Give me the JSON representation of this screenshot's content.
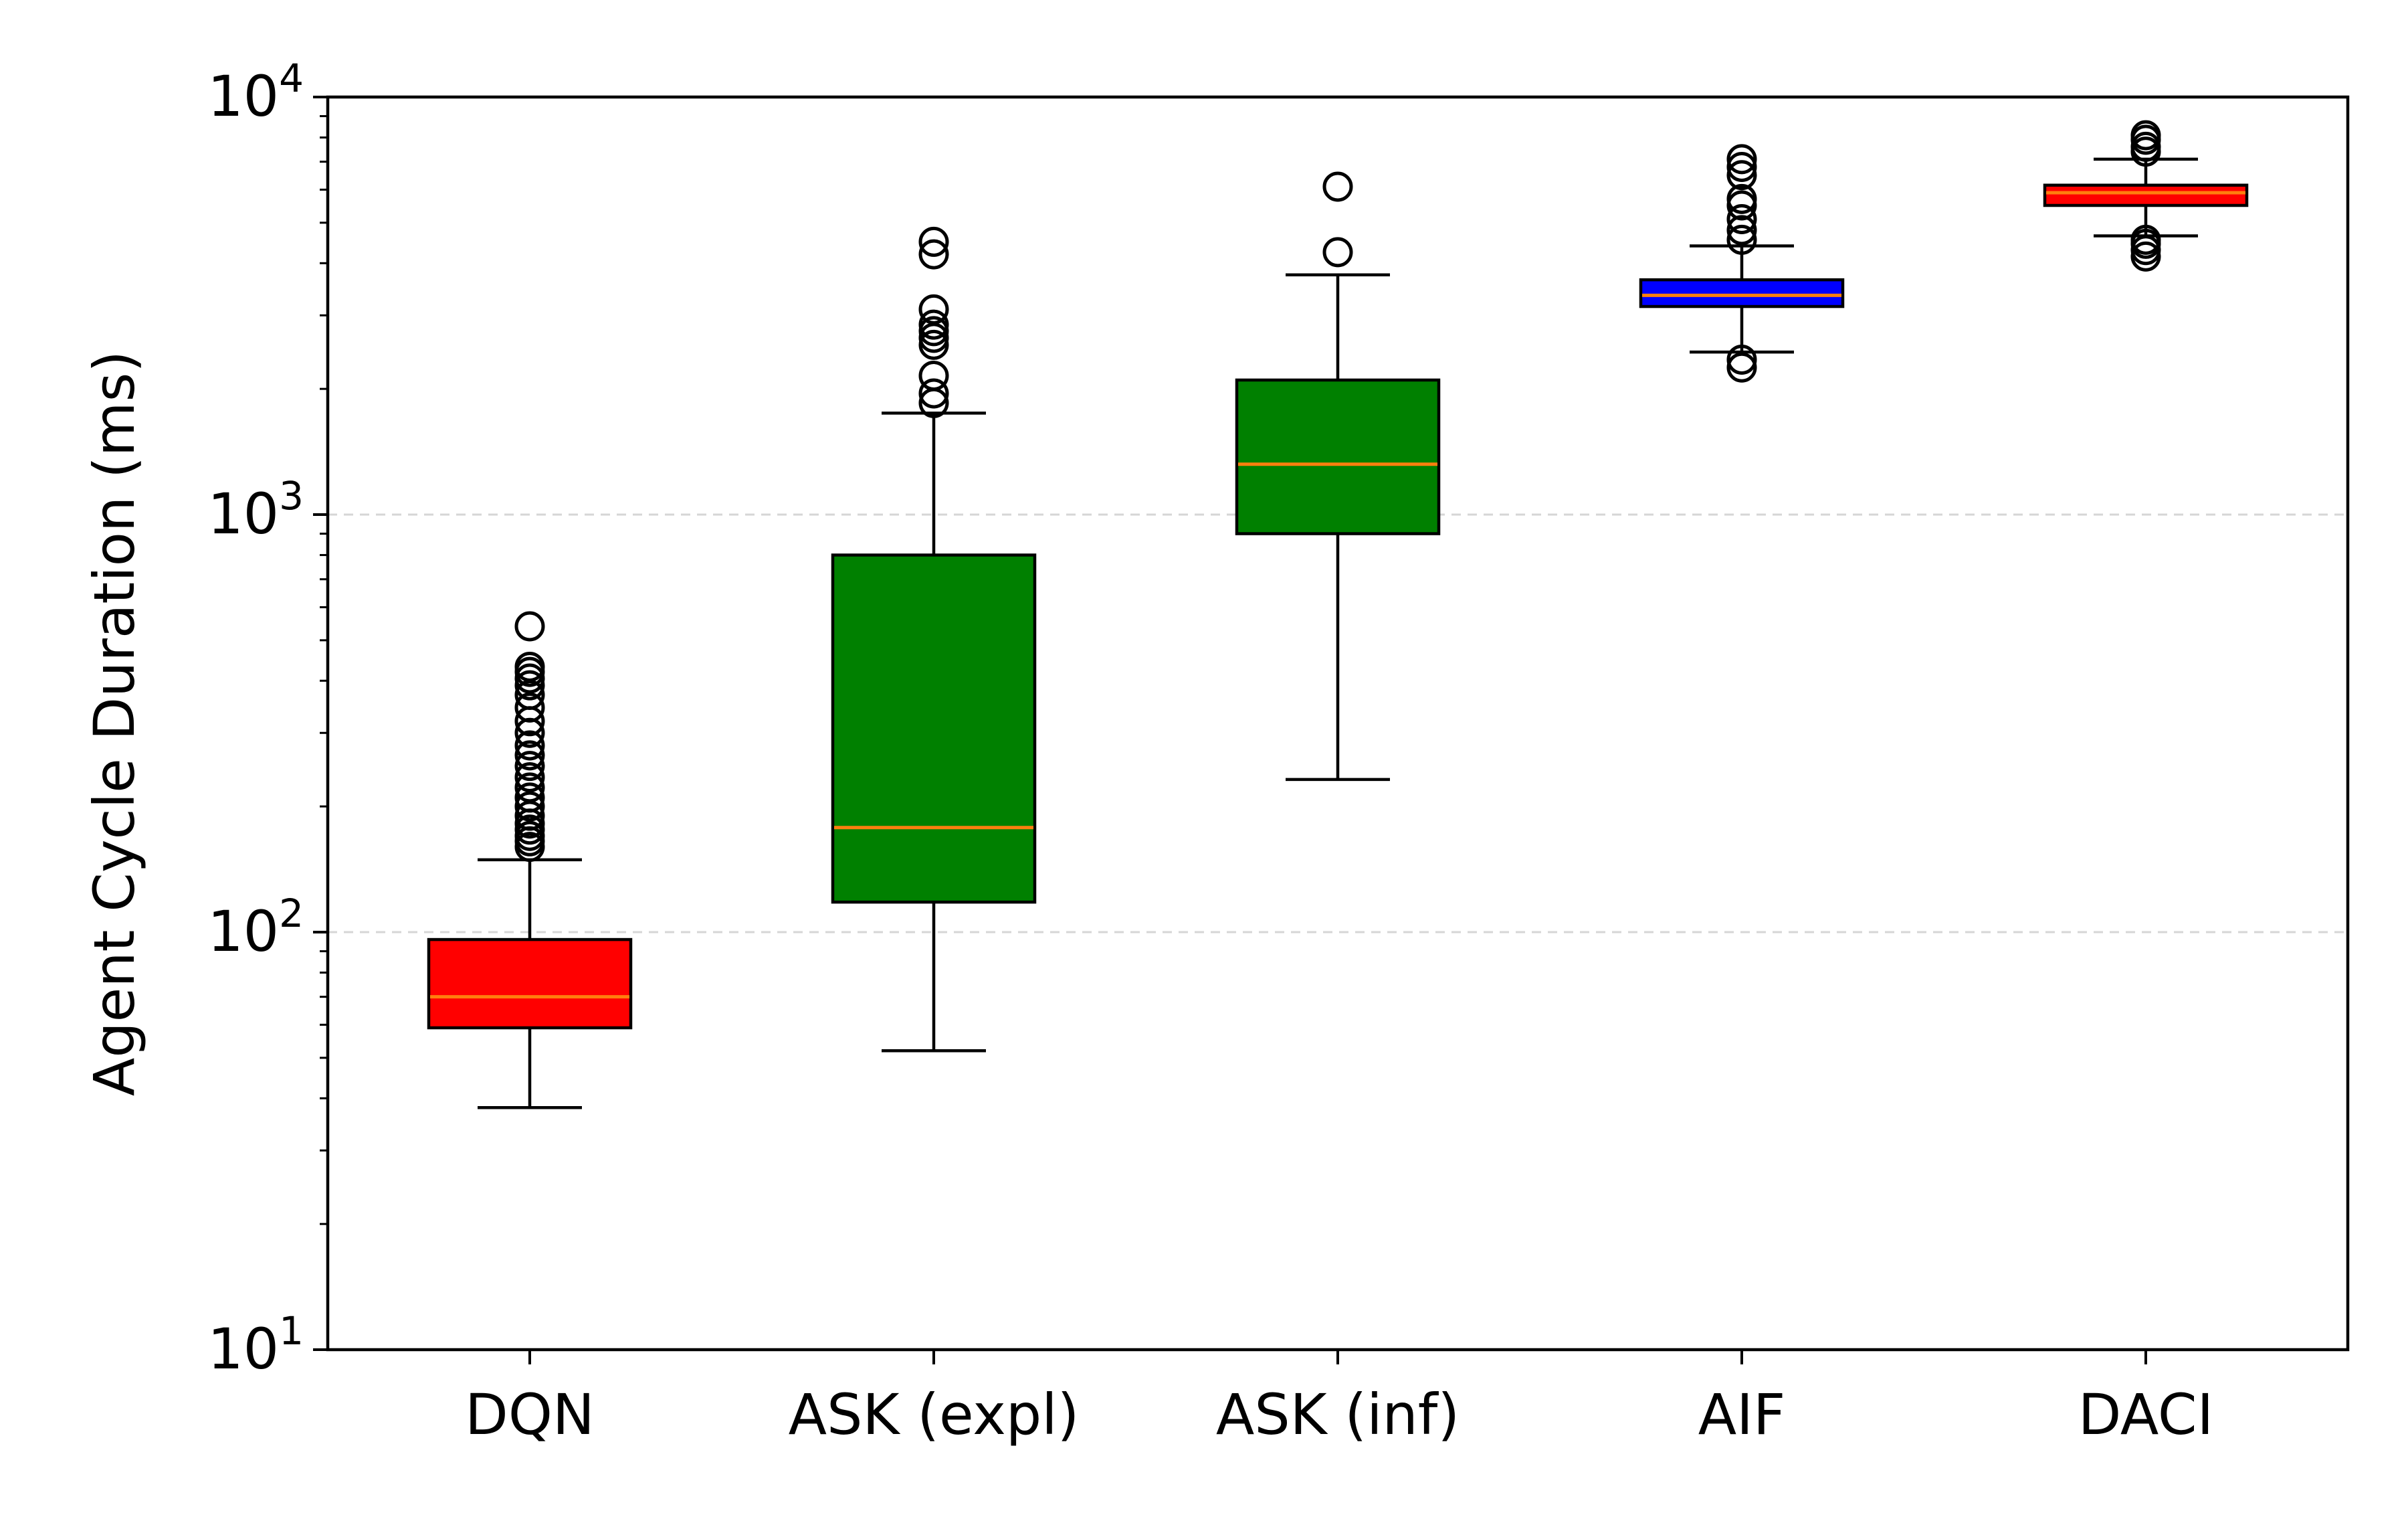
{
  "chart_data": {
    "type": "box",
    "ylabel": "Agent Cycle Duration (ms)",
    "yscale": "log",
    "ylim": [
      10,
      10000
    ],
    "grid": {
      "y_major": true,
      "x": false,
      "style": "dashed",
      "color": "#d6d6d6"
    },
    "y_tick_labels": [
      {
        "value": 10,
        "base": "10",
        "exp": "1"
      },
      {
        "value": 100,
        "base": "10",
        "exp": "2"
      },
      {
        "value": 1000,
        "base": "10",
        "exp": "3"
      },
      {
        "value": 10000,
        "base": "10",
        "exp": "4"
      }
    ],
    "categories": [
      "DQN",
      "ASK (expl)",
      "ASK (inf)",
      "AIF",
      "DACI"
    ],
    "boxes": [
      {
        "name": "DQN",
        "color": "#ff0000",
        "whisker_low": 38,
        "q1": 59,
        "median": 70,
        "q3": 96,
        "whisker_high": 149,
        "outliers": [
          160,
          165,
          170,
          176,
          182,
          190,
          200,
          210,
          222,
          235,
          250,
          265,
          280,
          300,
          320,
          345,
          370,
          390,
          405,
          420,
          432,
          540
        ]
      },
      {
        "name": "ASK (expl)",
        "color": "#008000",
        "whisker_low": 52,
        "q1": 118,
        "median": 178,
        "q3": 800,
        "whisker_high": 1750,
        "outliers": [
          1850,
          1950,
          2150,
          2550,
          2650,
          2750,
          2850,
          3100,
          4200,
          4500
        ]
      },
      {
        "name": "ASK (inf)",
        "color": "#008000",
        "whisker_low": 232,
        "q1": 900,
        "median": 1320,
        "q3": 2100,
        "whisker_high": 3750,
        "outliers": [
          4250,
          6100
        ]
      },
      {
        "name": "AIF",
        "color": "#0000ff",
        "whisker_low": 2450,
        "q1": 3150,
        "median": 3350,
        "q3": 3650,
        "whisker_high": 4400,
        "outliers": [
          2250,
          2350,
          4550,
          4800,
          5100,
          5500,
          5700,
          6500,
          6800,
          7100
        ]
      },
      {
        "name": "DACI",
        "color": "#ff0000",
        "whisker_low": 4650,
        "q1": 5500,
        "median": 5900,
        "q3": 6150,
        "whisker_high": 7100,
        "outliers": [
          4150,
          4300,
          4450,
          4550,
          7400,
          7600,
          7900,
          8100
        ]
      }
    ],
    "median_color": "#ff7f0e"
  }
}
